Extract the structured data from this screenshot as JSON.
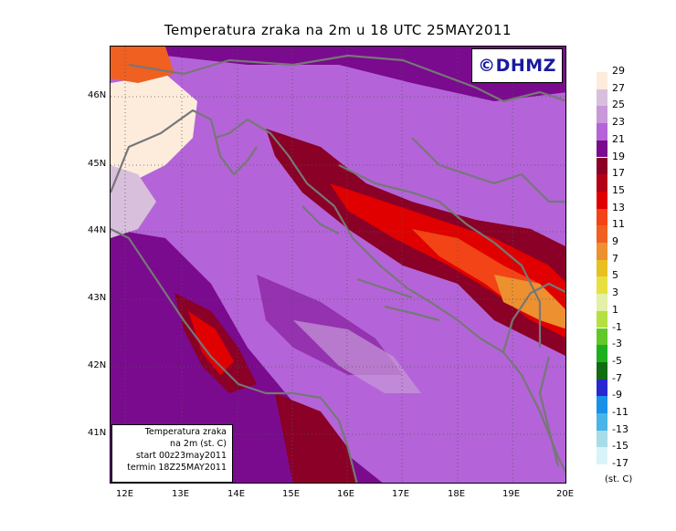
{
  "title": "Temperatura zraka na 2m u 18 UTC 25MAY2011",
  "logo": "©DHMZ",
  "infobox": {
    "line1": "Temperatura zraka",
    "line2": "na 2m (st. C)",
    "line3": "start 00z23may2011",
    "line4": "termin 18Z25MAY2011"
  },
  "lat_labels": [
    "46N",
    "45N",
    "44N",
    "43N",
    "42N",
    "41N"
  ],
  "lon_labels": [
    "12E",
    "13E",
    "14E",
    "15E",
    "16E",
    "17E",
    "18E",
    "19E",
    "20E"
  ],
  "legend": {
    "unit": "(st. C)",
    "labels": [
      "29",
      "27",
      "25",
      "23",
      "21",
      "19",
      "17",
      "15",
      "13",
      "11",
      "9",
      "7",
      "5",
      "3",
      "1",
      "-1",
      "-3",
      "-5",
      "-7",
      "-9",
      "-11",
      "-13",
      "-15",
      "-17"
    ],
    "colors": [
      "#fdecdc",
      "#d8c0dc",
      "#c898d8",
      "#b464d8",
      "#7a0a8e",
      "#8a0026",
      "#b40016",
      "#e00000",
      "#f24416",
      "#f06020",
      "#ec9030",
      "#e8c020",
      "#e8e040",
      "#e2f0a8",
      "#b4e040",
      "#60c828",
      "#1cb01c",
      "#106c10",
      "#2828d0",
      "#1890e8",
      "#48b4e8",
      "#a8dce8",
      "#d8f4f8",
      "#f4fcfc"
    ]
  }
}
